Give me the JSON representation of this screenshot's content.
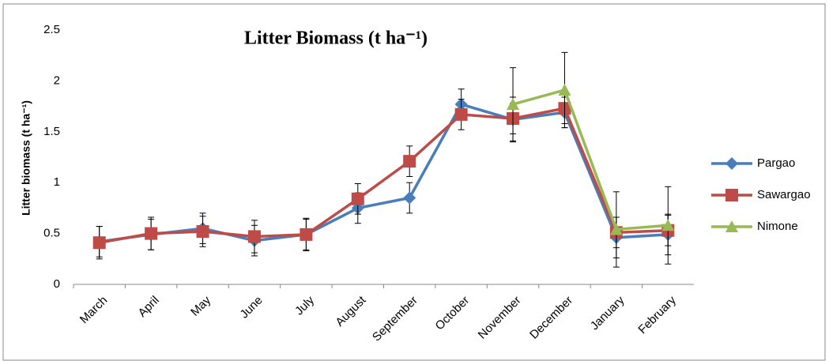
{
  "chart_data": {
    "type": "line",
    "title": "Litter Biomass (t ha⁻¹)",
    "y_label": "Litter biomass (t ha⁻¹)",
    "categories": [
      "March",
      "April",
      "May",
      "June",
      "July",
      "August",
      "September",
      "October",
      "November",
      "December",
      "January",
      "February"
    ],
    "series": [
      {
        "name": "Pargao",
        "color": "#4a7ebb",
        "marker": "diamond",
        "values": [
          0.42,
          0.49,
          0.55,
          0.43,
          0.49,
          0.75,
          0.85,
          1.77,
          1.62,
          1.69,
          0.46,
          0.49
        ],
        "errors": [
          0.15,
          0.15,
          0.15,
          0.15,
          0.15,
          0.15,
          0.15,
          0.15,
          0.22,
          0.15,
          0.2,
          0.2
        ]
      },
      {
        "name": "Sawargao",
        "color": "#be4b48",
        "marker": "square",
        "values": [
          0.41,
          0.5,
          0.52,
          0.47,
          0.49,
          0.84,
          1.21,
          1.67,
          1.63,
          1.73,
          0.51,
          0.53
        ],
        "errors": [
          0.16,
          0.16,
          0.15,
          0.16,
          0.16,
          0.15,
          0.15,
          0.15,
          0.15,
          0.15,
          0.15,
          0.15
        ]
      },
      {
        "name": "Nimone",
        "color": "#98b954",
        "marker": "triangle",
        "values": [
          null,
          null,
          null,
          null,
          null,
          null,
          null,
          null,
          1.77,
          1.91,
          0.54,
          0.58
        ],
        "errors": [
          null,
          null,
          null,
          null,
          null,
          null,
          null,
          null,
          0.36,
          0.37,
          0.37,
          0.38
        ]
      }
    ],
    "ylim": [
      0,
      2.5
    ],
    "yticks": [
      0,
      0.5,
      1,
      1.5,
      2,
      2.5
    ],
    "legend": "right"
  }
}
